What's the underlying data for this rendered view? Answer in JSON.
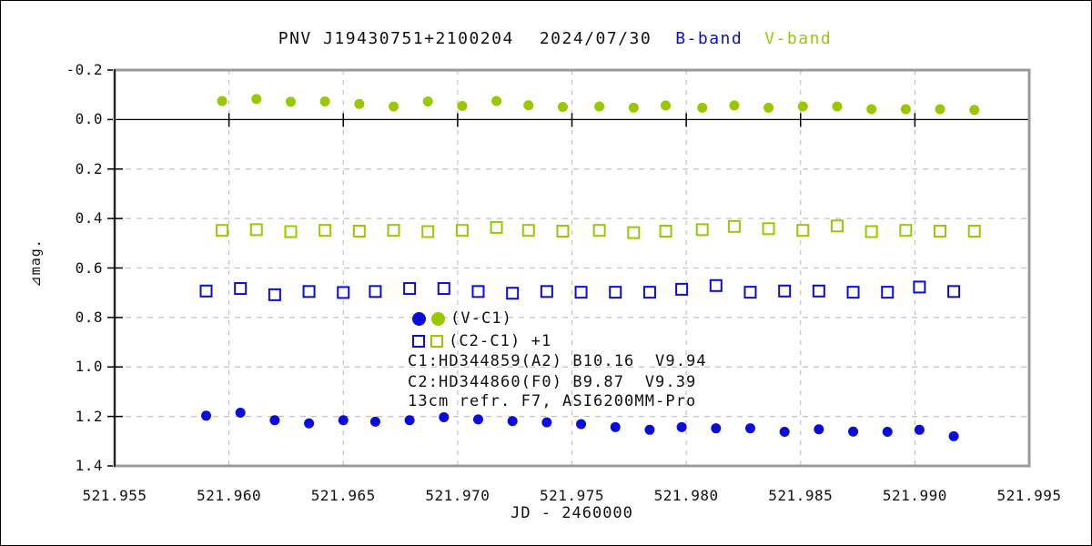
{
  "header": {
    "object": "PNV J19430751+2100204",
    "date": "2024/07/30",
    "b_band": "B-band",
    "v_band": "V-band"
  },
  "legend": {
    "vc1": "(V-C1)",
    "c2c1": "(C2-C1) +1",
    "c1": "C1:HD344859(A2) B10.16  V9.94",
    "c2": "C2:HD344860(F0) B9.87  V9.39",
    "equipment": "13cm refr. F7, ASI6200MM-Pro"
  },
  "colors": {
    "b": "#0b0bdb",
    "v": "#9ac800",
    "frame": "#9a9a9a",
    "grid": "#c3c3c3",
    "zero_axis": "#000000"
  },
  "chart_data": {
    "type": "scatter",
    "xlabel": "JD - 2460000",
    "ylabel": "⊿mag.",
    "xlim": [
      521.955,
      521.995
    ],
    "ylim": [
      -0.2,
      1.4
    ],
    "y_increases_downward": true,
    "grid": true,
    "x_ticks": [
      521.955,
      521.96,
      521.965,
      521.97,
      521.975,
      521.98,
      521.985,
      521.99,
      521.995
    ],
    "x_tick_labels": [
      "521.955",
      "521.960",
      "521.965",
      "521.970",
      "521.975",
      "521.980",
      "521.985",
      "521.990",
      "521.995"
    ],
    "y_ticks": [
      -0.2,
      0.0,
      0.2,
      0.4,
      0.6,
      0.8,
      1.0,
      1.2,
      1.4
    ],
    "y_tick_labels": [
      "-0.2",
      "0.0",
      "0.2",
      "0.4",
      "0.6",
      "0.8",
      "1.0",
      "1.2",
      "1.4"
    ],
    "series": [
      {
        "name": "V-band V-C1",
        "marker": "filled-circle",
        "color_key": "v",
        "x": [
          521.9597,
          521.9612,
          521.9627,
          521.9642,
          521.9657,
          521.9672,
          521.9687,
          521.9702,
          521.9717,
          521.9731,
          521.9746,
          521.9762,
          521.9777,
          521.9791,
          521.9807,
          521.9821,
          521.9836,
          521.9851,
          521.9866,
          521.9881,
          521.9896,
          521.9911,
          521.9926
        ],
        "y": [
          -0.075,
          -0.083,
          -0.072,
          -0.073,
          -0.063,
          -0.053,
          -0.073,
          -0.055,
          -0.075,
          -0.058,
          -0.051,
          -0.053,
          -0.048,
          -0.057,
          -0.048,
          -0.057,
          -0.048,
          -0.053,
          -0.053,
          -0.042,
          -0.042,
          -0.042,
          -0.039
        ]
      },
      {
        "name": "V-band (C2-C1)+1",
        "marker": "open-square",
        "color_key": "v",
        "x": [
          521.9597,
          521.9612,
          521.9627,
          521.9642,
          521.9657,
          521.9672,
          521.9687,
          521.9702,
          521.9717,
          521.9731,
          521.9746,
          521.9762,
          521.9777,
          521.9791,
          521.9807,
          521.9821,
          521.9836,
          521.9851,
          521.9866,
          521.9881,
          521.9896,
          521.9911,
          521.9926
        ],
        "y": [
          0.448,
          0.445,
          0.453,
          0.448,
          0.451,
          0.448,
          0.453,
          0.448,
          0.436,
          0.448,
          0.451,
          0.448,
          0.457,
          0.451,
          0.445,
          0.432,
          0.441,
          0.448,
          0.43,
          0.453,
          0.448,
          0.451,
          0.451
        ]
      },
      {
        "name": "B-band (C2-C1)+1",
        "marker": "open-square",
        "color_key": "b",
        "x": [
          521.959,
          521.9605,
          521.962,
          521.9635,
          521.965,
          521.9664,
          521.9679,
          521.9694,
          521.9709,
          521.9724,
          521.9739,
          521.9754,
          521.9769,
          521.9784,
          521.9798,
          521.9813,
          521.9828,
          521.9843,
          521.9858,
          521.9873,
          521.9888,
          521.9902,
          521.9917
        ],
        "y": [
          0.693,
          0.683,
          0.708,
          0.695,
          0.699,
          0.695,
          0.683,
          0.683,
          0.695,
          0.702,
          0.695,
          0.698,
          0.698,
          0.698,
          0.686,
          0.671,
          0.698,
          0.693,
          0.693,
          0.698,
          0.698,
          0.677,
          0.695
        ]
      },
      {
        "name": "B-band V-C1",
        "marker": "filled-circle",
        "color_key": "b",
        "x": [
          521.959,
          521.9605,
          521.962,
          521.9635,
          521.965,
          521.9664,
          521.9679,
          521.9694,
          521.9709,
          521.9724,
          521.9739,
          521.9754,
          521.9769,
          521.9784,
          521.9798,
          521.9813,
          521.9828,
          521.9843,
          521.9858,
          521.9873,
          521.9888,
          521.9902,
          521.9917
        ],
        "y": [
          1.197,
          1.185,
          1.215,
          1.228,
          1.215,
          1.221,
          1.215,
          1.203,
          1.212,
          1.219,
          1.224,
          1.231,
          1.243,
          1.254,
          1.243,
          1.248,
          1.248,
          1.262,
          1.252,
          1.261,
          1.262,
          1.254,
          1.28
        ]
      }
    ]
  }
}
